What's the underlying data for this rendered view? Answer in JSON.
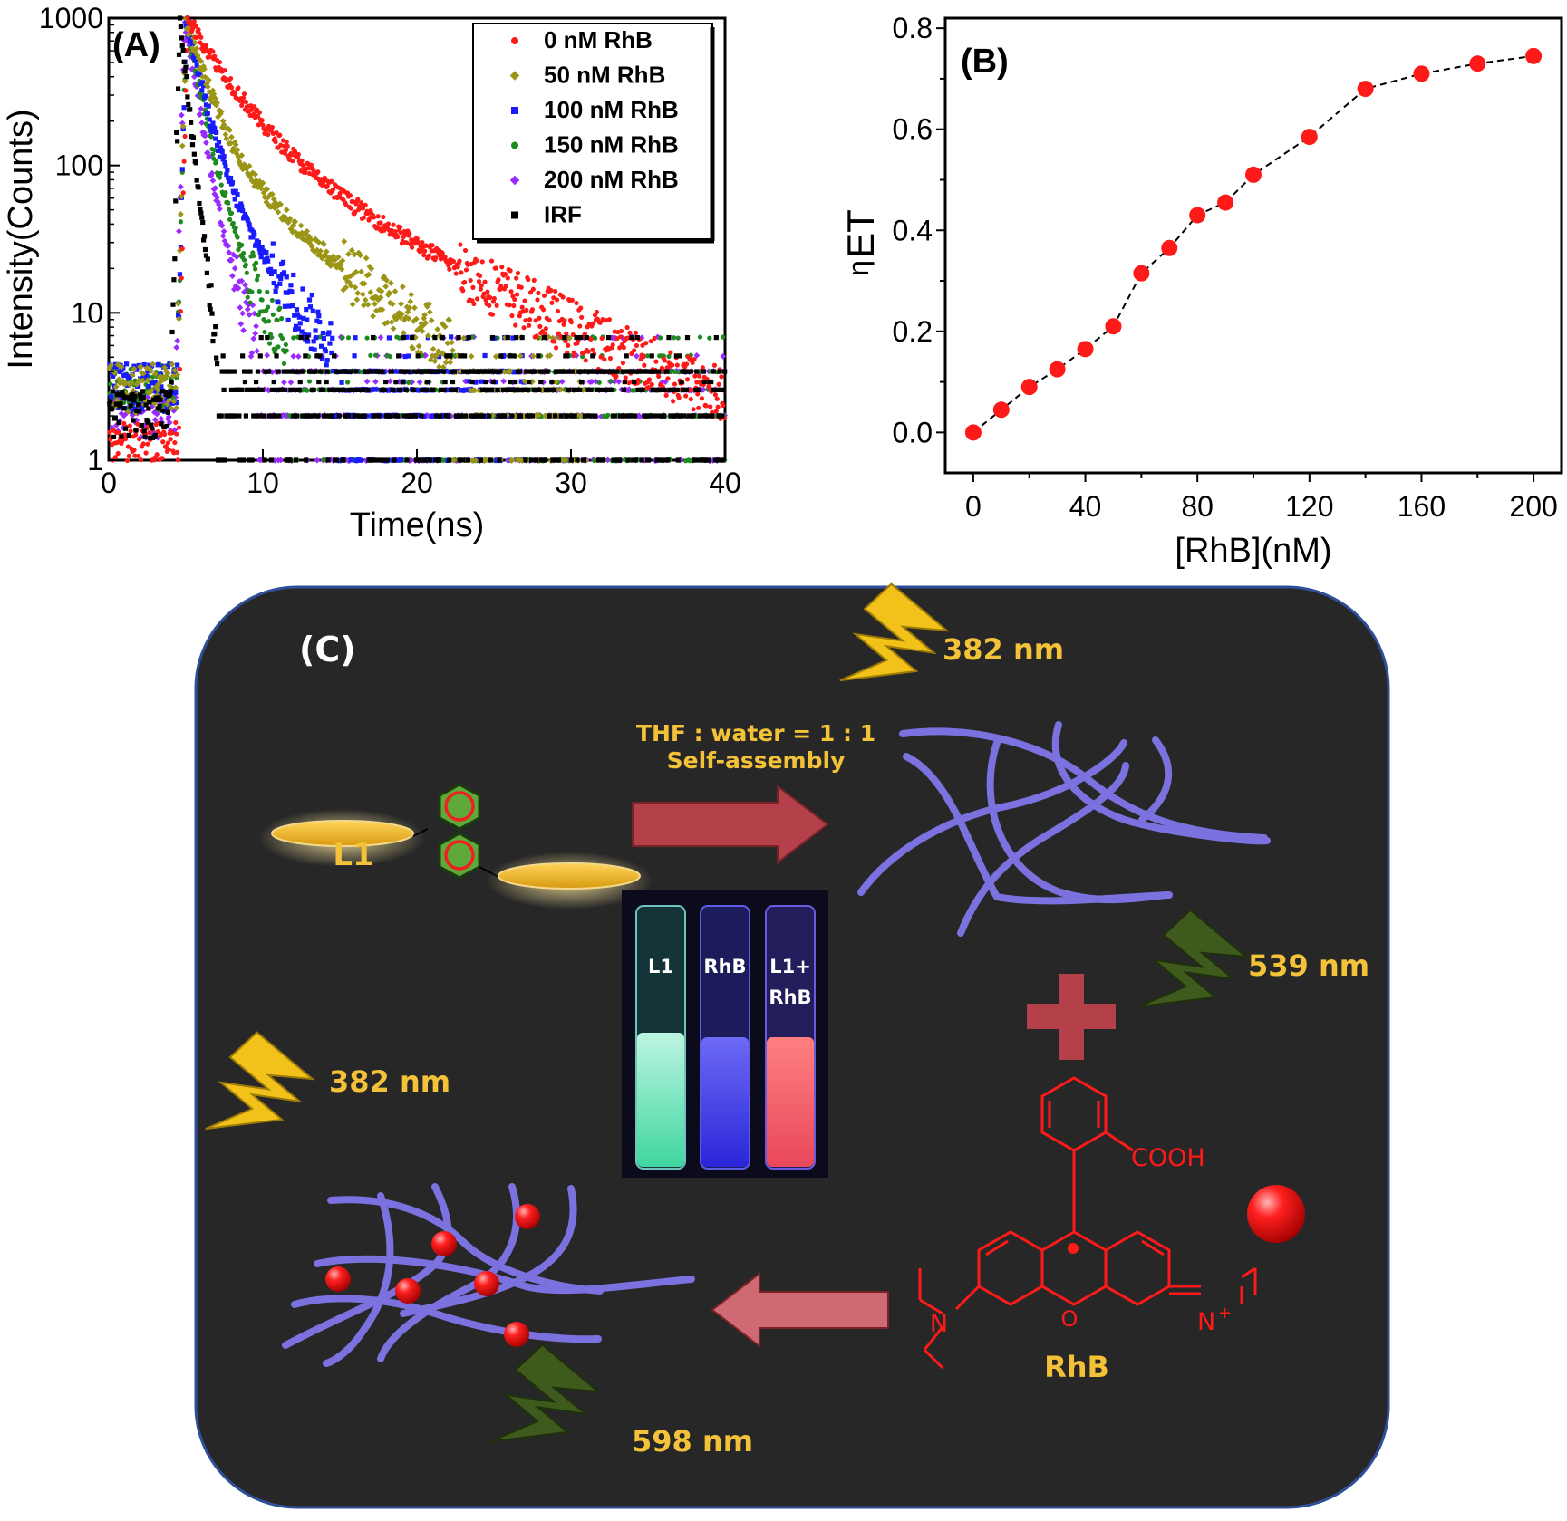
{
  "chart_data": [
    {
      "panel_label": "(A)",
      "type": "scatter",
      "xlabel": "Time(ns)",
      "ylabel": "Intensity(Counts)",
      "xlim": [
        0,
        40
      ],
      "ylim": [
        1,
        1000
      ],
      "yscale": "log",
      "xticks": [
        0,
        10,
        20,
        30,
        40
      ],
      "yticks": [
        1,
        10,
        100,
        1000
      ],
      "legend_position": "top-right",
      "series": [
        {
          "name": "0 nM RhB",
          "color": "#ff1a1a",
          "marker": "circle",
          "peak_x": 5.1,
          "decays": [
            [
              800,
              2.2
            ],
            [
              200,
              7.5
            ]
          ],
          "background": 1.2,
          "noise_floor": 1,
          "tail_end": 40
        },
        {
          "name": "50 nM RhB",
          "color": "#9b9515",
          "marker": "diamond",
          "peak_x": 5.0,
          "decays": [
            [
              820,
              1.1
            ],
            [
              170,
              4.5
            ]
          ],
          "background": 3,
          "noise_floor": 3,
          "tail_end": 31
        },
        {
          "name": "100 nM RhB",
          "color": "#1a1aff",
          "marker": "square",
          "peak_x": 5.0,
          "decays": [
            [
              850,
              0.85
            ],
            [
              140,
              2.6
            ]
          ],
          "background": 3,
          "noise_floor": 3,
          "tail_end": 27
        },
        {
          "name": "150 nM RhB",
          "color": "#1f8a1f",
          "marker": "circle",
          "peak_x": 5.0,
          "decays": [
            [
              880,
              0.75
            ],
            [
              110,
              1.9
            ]
          ],
          "background": 3,
          "noise_floor": 3,
          "tail_end": 40
        },
        {
          "name": "200 nM RhB",
          "color": "#9a2aff",
          "marker": "diamond",
          "peak_x": 4.9,
          "decays": [
            [
              900,
              0.65
            ],
            [
              90,
              1.5
            ]
          ],
          "background": 2,
          "noise_floor": 2,
          "tail_end": 40
        },
        {
          "name": "IRF",
          "color": "#000000",
          "marker": "square",
          "peak_x": 4.6,
          "decays": [
            [
              1000,
              0.45
            ]
          ],
          "background": 2,
          "noise_floor": 2,
          "tail_end": 40
        }
      ]
    },
    {
      "panel_label": "(B)",
      "type": "line",
      "xlabel": "[RhB](nM)",
      "ylabel": "η",
      "ylabel_sub": "ET",
      "xlim": [
        -10,
        210
      ],
      "ylim": [
        -0.08,
        0.82
      ],
      "xticks": [
        0,
        40,
        80,
        120,
        160,
        200
      ],
      "yticks": [
        0.0,
        0.2,
        0.4,
        0.6,
        0.8
      ],
      "ytick_labels": [
        "0.0",
        "0.2",
        "0.4",
        "0.6",
        "0.8"
      ],
      "x": [
        0,
        10,
        20,
        30,
        40,
        50,
        60,
        70,
        80,
        90,
        100,
        120,
        140,
        160,
        180,
        200
      ],
      "y": [
        0.0,
        0.045,
        0.09,
        0.125,
        0.165,
        0.21,
        0.315,
        0.365,
        0.43,
        0.455,
        0.51,
        0.585,
        0.68,
        0.71,
        0.73,
        0.745
      ],
      "marker_color": "#ff1a1a",
      "line_style": "dashed"
    }
  ],
  "scheme": {
    "panel_label": "(C)",
    "l1_label": "L1",
    "solvent_text": "THF : water = 1 : 1",
    "process_text": "Self-assembly",
    "excitation_top": "382 nm",
    "emission_green": "539 nm",
    "excitation_bottom": "382 nm",
    "emission_red": "598 nm",
    "rhb_label": "RhB",
    "cooh_label": "COOH",
    "n_plus_label": "N",
    "plus_sup": "+",
    "n_label": "N",
    "o_label": "O",
    "vial_labels": [
      "L1",
      "RhB",
      "L1+",
      "RhB"
    ],
    "colors": {
      "background": "#272727",
      "border": "#2f4f9a",
      "text": "#f3c238",
      "fiber": "#7b72e0",
      "rhb": "#ff1a1a",
      "arrow": "#a8323a",
      "bolt_yellow": "#f2c21b",
      "bolt_green": "#3f5a1d"
    }
  }
}
